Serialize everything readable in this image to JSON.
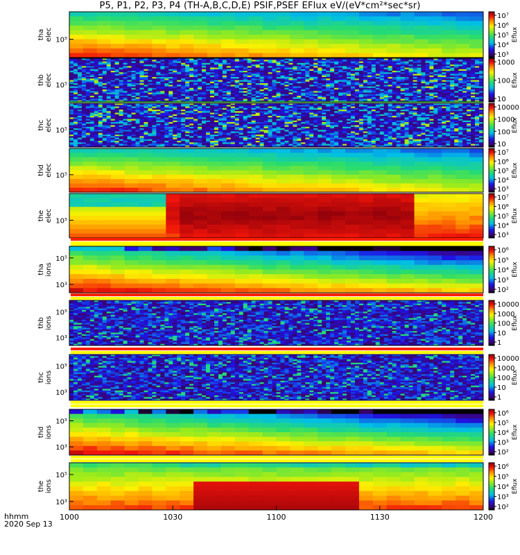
{
  "title": "P5, P1, P2, P3, P4 (TH-A,B,C,D,E) PSIF,PSEF EFlux eV/(eV*cm²*sec*sr)",
  "footer": {
    "label_line1": "hhmm",
    "label_line2": "2020 Sep 13"
  },
  "xaxis": {
    "ticks": [
      "1000",
      "1030",
      "1100",
      "1130",
      "1200"
    ]
  },
  "colorbar_label": "Eflux",
  "chart_data": [
    {
      "type": "heatmap",
      "probe": "tha",
      "species": "elec",
      "ylabel": [
        "tha",
        "elec"
      ],
      "ytick_labels": [
        "10⁵"
      ],
      "cbar_ticks": [
        "10³",
        "10⁴",
        "10⁵",
        "10⁶",
        "10⁷"
      ],
      "pattern": "electron_warm"
    },
    {
      "type": "heatmap",
      "probe": "thb",
      "species": "elec",
      "ylabel": [
        "thb",
        "elec"
      ],
      "ytick_labels": [
        "10⁵"
      ],
      "cbar_ticks": [
        "10",
        "100",
        "1000"
      ],
      "pattern": "noise"
    },
    {
      "type": "heatmap",
      "probe": "thc",
      "species": "elec",
      "ylabel": [
        "thc",
        "elec"
      ],
      "ytick_labels": [
        "10⁵"
      ],
      "cbar_ticks": [
        "10",
        "100",
        "1000",
        "10000"
      ],
      "pattern": "noise"
    },
    {
      "type": "heatmap",
      "probe": "thd",
      "species": "elec",
      "ylabel": [
        "thd",
        "elec"
      ],
      "ytick_labels": [
        "10⁵"
      ],
      "cbar_ticks": [
        "10³",
        "10⁴",
        "10⁵",
        "10⁶",
        "10⁷"
      ],
      "pattern": "electron_warm"
    },
    {
      "type": "heatmap",
      "probe": "the",
      "species": "elec",
      "ylabel": [
        "the",
        "elec"
      ],
      "ytick_labels": [
        "10⁵"
      ],
      "cbar_ticks": [
        "10³",
        "10⁴",
        "10⁵",
        "10⁶",
        "10⁷"
      ],
      "pattern": "electron_the"
    },
    {
      "type": "heatmap",
      "probe": "tha",
      "species": "ions",
      "ylabel": [
        "tha",
        "ions"
      ],
      "ytick_labels": [
        "10⁵",
        "10³"
      ],
      "cbar_ticks": [
        "10²",
        "10³",
        "10⁴",
        "10⁵",
        "10⁶"
      ],
      "pattern": "ion_cooling"
    },
    {
      "type": "heatmap",
      "probe": "thb",
      "species": "ions",
      "ylabel": [
        "thb",
        "ions"
      ],
      "ytick_labels": [
        "10⁵",
        "10³"
      ],
      "cbar_ticks": [
        "1",
        "10",
        "100",
        "1000",
        "10000"
      ],
      "pattern": "ion_noise"
    },
    {
      "type": "heatmap",
      "probe": "thc",
      "species": "ions",
      "ylabel": [
        "thc",
        "ions"
      ],
      "ytick_labels": [
        "10⁵",
        "10³"
      ],
      "cbar_ticks": [
        "1",
        "10",
        "100",
        "1000",
        "10000"
      ],
      "pattern": "ion_noise"
    },
    {
      "type": "heatmap",
      "probe": "thd",
      "species": "ions",
      "ylabel": [
        "thd",
        "ions"
      ],
      "ytick_labels": [
        "10⁵",
        "10³"
      ],
      "cbar_ticks": [
        "10²",
        "10³",
        "10⁴",
        "10⁵",
        "10⁶"
      ],
      "pattern": "ion_cooling"
    },
    {
      "type": "heatmap",
      "probe": "the",
      "species": "ions",
      "ylabel": [
        "the",
        "ions"
      ],
      "ytick_labels": [
        "10⁵",
        "10³"
      ],
      "cbar_ticks": [
        "10²",
        "10³",
        "10⁴",
        "10⁵",
        "10⁶"
      ],
      "pattern": "ion_the"
    }
  ]
}
